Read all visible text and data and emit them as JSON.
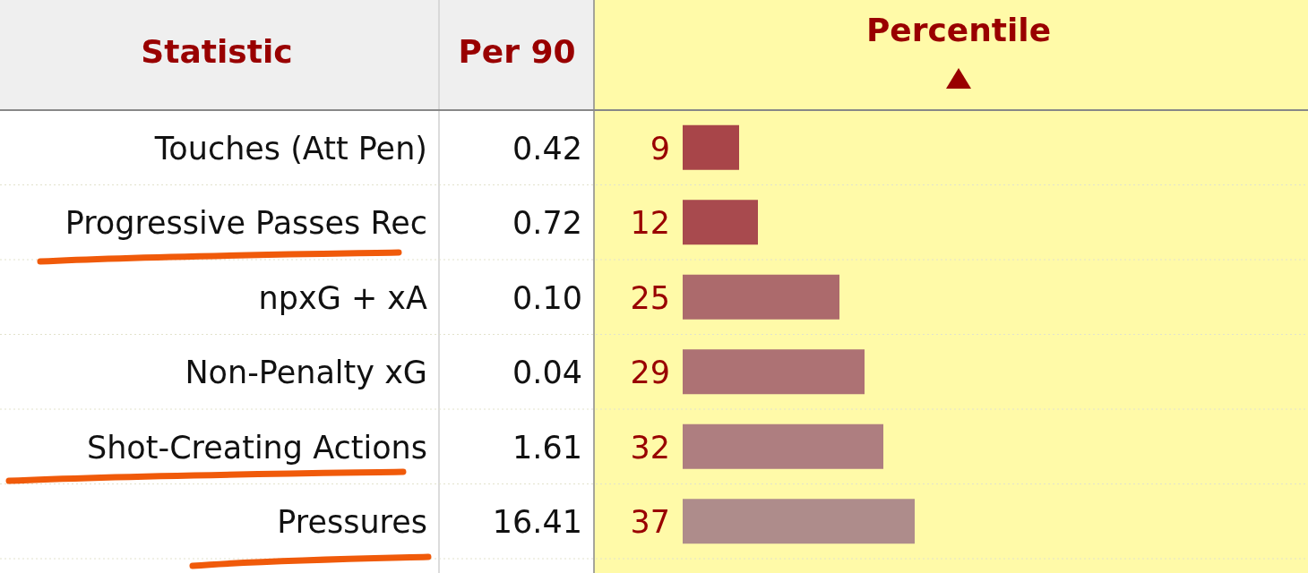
{
  "chart_data": {
    "type": "bar",
    "orientation": "horizontal",
    "xlabel": "Percentile",
    "ylabel": "Statistic",
    "categories": [
      "Touches (Att Pen)",
      "Progressive Passes Rec",
      "npxG + xA",
      "Non-Penalty xG",
      "Shot-Creating Actions",
      "Pressures"
    ],
    "values": [
      9,
      12,
      25,
      29,
      32,
      37
    ],
    "colors": [
      "#a84549",
      "#a84a4e",
      "#ac6a6c",
      "#ad7274",
      "#ae7e80",
      "#ae8c8b"
    ],
    "xlim": [
      0,
      100
    ],
    "data_labels": true,
    "tick_labels": "y",
    "grid": false,
    "annotations": [
      "Per 90",
      "0.42",
      "0.72",
      "0.10",
      "0.04",
      "1.61",
      "16.41"
    ]
  }
}
